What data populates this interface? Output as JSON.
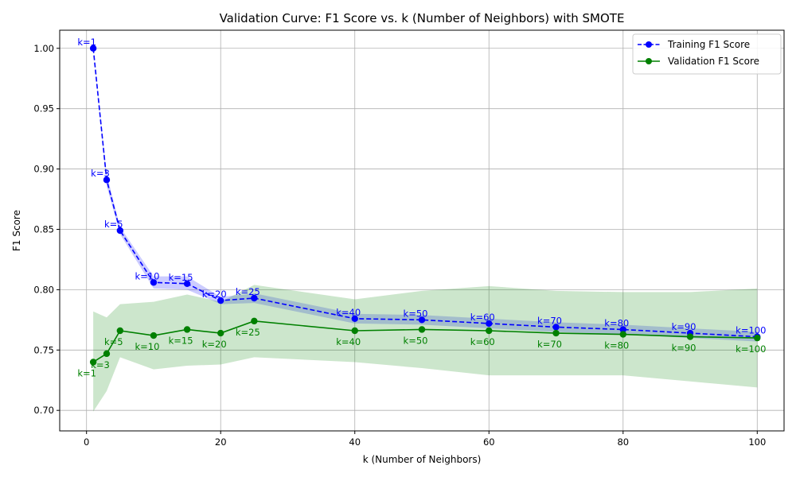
{
  "chart_data": {
    "type": "line",
    "title": "Validation Curve: F1 Score vs. k (Number of Neighbors) with SMOTE",
    "xlabel": "k (Number of Neighbors)",
    "ylabel": "F1 Score",
    "xlim": [
      -4,
      104
    ],
    "ylim": [
      0.683,
      1.015
    ],
    "xticks": [
      0,
      20,
      40,
      60,
      80,
      100
    ],
    "yticks": [
      0.7,
      0.75,
      0.8,
      0.85,
      0.9,
      0.95,
      1.0
    ],
    "ytick_labels": [
      "0.70",
      "0.75",
      "0.80",
      "0.85",
      "0.90",
      "0.95",
      "1.00"
    ],
    "grid": true,
    "legend_position": "top-right",
    "x": [
      1,
      3,
      5,
      10,
      15,
      20,
      25,
      40,
      50,
      60,
      70,
      80,
      90,
      100
    ],
    "point_labels": [
      "k=1",
      "k=3",
      "k=5",
      "k=10",
      "k=15",
      "k=20",
      "k=25",
      "k=40",
      "k=50",
      "k=60",
      "k=70",
      "k=80",
      "k=90",
      "k=100"
    ],
    "series": [
      {
        "name": "Training F1 Score",
        "color": "#0000ff",
        "band_color": "#0000ff",
        "line_style": "dashed",
        "values": [
          1.0,
          0.891,
          0.849,
          0.806,
          0.805,
          0.791,
          0.793,
          0.776,
          0.775,
          0.772,
          0.769,
          0.767,
          0.764,
          0.761
        ],
        "lower": [
          1.0,
          0.886,
          0.846,
          0.801,
          0.8,
          0.788,
          0.789,
          0.772,
          0.771,
          0.768,
          0.765,
          0.763,
          0.76,
          0.757
        ],
        "upper": [
          1.0,
          0.896,
          0.852,
          0.811,
          0.811,
          0.794,
          0.797,
          0.78,
          0.779,
          0.776,
          0.773,
          0.771,
          0.768,
          0.765
        ]
      },
      {
        "name": "Validation F1 Score",
        "color": "#008000",
        "band_color": "#008000",
        "line_style": "solid",
        "values": [
          0.74,
          0.747,
          0.766,
          0.762,
          0.767,
          0.764,
          0.774,
          0.766,
          0.767,
          0.766,
          0.764,
          0.763,
          0.761,
          0.76
        ],
        "lower": [
          0.699,
          0.716,
          0.744,
          0.734,
          0.737,
          0.738,
          0.744,
          0.74,
          0.735,
          0.729,
          0.729,
          0.729,
          0.724,
          0.719
        ],
        "upper": [
          0.782,
          0.777,
          0.788,
          0.79,
          0.796,
          0.79,
          0.804,
          0.792,
          0.799,
          0.803,
          0.799,
          0.798,
          0.798,
          0.801
        ]
      }
    ]
  }
}
